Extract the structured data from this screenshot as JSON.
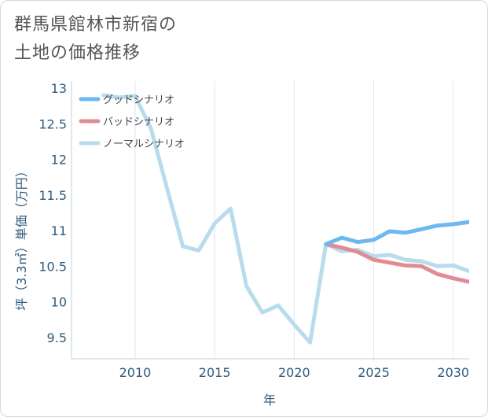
{
  "title_lines": [
    "群馬県館林市新宿の",
    "土地の価格推移"
  ],
  "chart_data": {
    "type": "line",
    "title": "群馬県館林市新宿の土地の価格推移",
    "xlabel": "年",
    "ylabel": "坪（3.3㎡）単価（万円）",
    "xlim": [
      2006,
      2031
    ],
    "ylim": [
      9.2,
      13.1
    ],
    "xticks": [
      2010,
      2015,
      2020,
      2025,
      2030
    ],
    "yticks": [
      9.5,
      10,
      10.5,
      11,
      11.5,
      12,
      12.5,
      13
    ],
    "grid": "vertical",
    "legend_position": "top-left",
    "series": [
      {
        "name": "グッドシナリオ",
        "color": "#6cb8ef",
        "x": [
          2022,
          2023,
          2024,
          2025,
          2026,
          2027,
          2028,
          2029,
          2030,
          2031
        ],
        "values": [
          10.81,
          10.9,
          10.84,
          10.87,
          10.99,
          10.97,
          11.02,
          11.07,
          11.09,
          11.12
        ]
      },
      {
        "name": "バッドシナリオ",
        "color": "#e08c92",
        "x": [
          2022,
          2023,
          2024,
          2025,
          2026,
          2027,
          2028,
          2029,
          2030,
          2031
        ],
        "values": [
          10.81,
          10.76,
          10.7,
          10.59,
          10.55,
          10.51,
          10.5,
          10.39,
          10.33,
          10.28
        ]
      },
      {
        "name": "ノーマルシナリオ",
        "color": "#b9dced",
        "x": [
          2008,
          2009,
          2010,
          2011,
          2012,
          2013,
          2014,
          2015,
          2016,
          2017,
          2018,
          2019,
          2020,
          2021,
          2022,
          2023,
          2024,
          2025,
          2026,
          2027,
          2028,
          2029,
          2030,
          2031
        ],
        "values": [
          12.9,
          12.87,
          12.89,
          12.43,
          11.6,
          10.78,
          10.72,
          11.1,
          11.31,
          10.22,
          9.85,
          9.95,
          9.68,
          9.43,
          10.81,
          10.71,
          10.73,
          10.64,
          10.66,
          10.59,
          10.57,
          10.5,
          10.51,
          10.43
        ]
      }
    ]
  }
}
